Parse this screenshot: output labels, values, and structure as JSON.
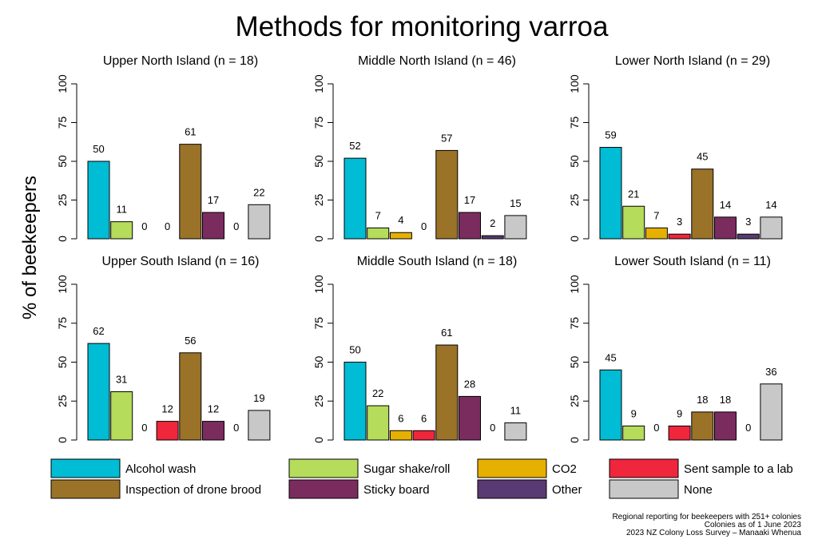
{
  "chart_data": {
    "type": "bar",
    "title": "Methods for monitoring varroa",
    "ylabel": "% of beekeepers",
    "ylim": [
      0,
      100
    ],
    "yticks": [
      0,
      25,
      50,
      75,
      100
    ],
    "categories": [
      "Alcohol wash",
      "Sugar shake/roll",
      "CO2",
      "Sent sample to a lab",
      "Inspection of drone brood",
      "Sticky board",
      "Other",
      "None"
    ],
    "colors": [
      "#00bcd4",
      "#b5dc5a",
      "#e6b000",
      "#f0263c",
      "#9a7228",
      "#7b2c5e",
      "#5a3a72",
      "#c8c8c8"
    ],
    "panels": [
      {
        "title": "Upper North Island (n = 18)",
        "values": [
          50,
          11,
          0,
          0,
          61,
          17,
          0,
          22
        ]
      },
      {
        "title": "Middle North Island (n = 46)",
        "values": [
          52,
          7,
          4,
          0,
          57,
          17,
          2,
          15
        ]
      },
      {
        "title": "Lower North Island (n = 29)",
        "values": [
          59,
          21,
          7,
          3,
          45,
          14,
          3,
          14
        ]
      },
      {
        "title": "Upper South Island (n = 16)",
        "values": [
          62,
          31,
          0,
          12,
          56,
          12,
          0,
          19
        ]
      },
      {
        "title": "Middle South Island (n = 18)",
        "values": [
          50,
          22,
          6,
          6,
          61,
          28,
          0,
          11
        ]
      },
      {
        "title": "Lower South Island (n = 11)",
        "values": [
          45,
          9,
          0,
          9,
          18,
          18,
          0,
          36
        ]
      }
    ],
    "legend": [
      "Alcohol wash",
      "Sugar shake/roll",
      "CO2",
      "Sent sample to a lab",
      "Inspection of drone brood",
      "Sticky board",
      "Other",
      "None"
    ],
    "legend_placement": "bottom",
    "grid": false
  },
  "footnote": [
    "Regional reporting for beekeepers with 251+ colonies",
    "Colonies as of 1 June 2023",
    "2023 NZ Colony Loss Survey – Manaaki Whenua"
  ]
}
